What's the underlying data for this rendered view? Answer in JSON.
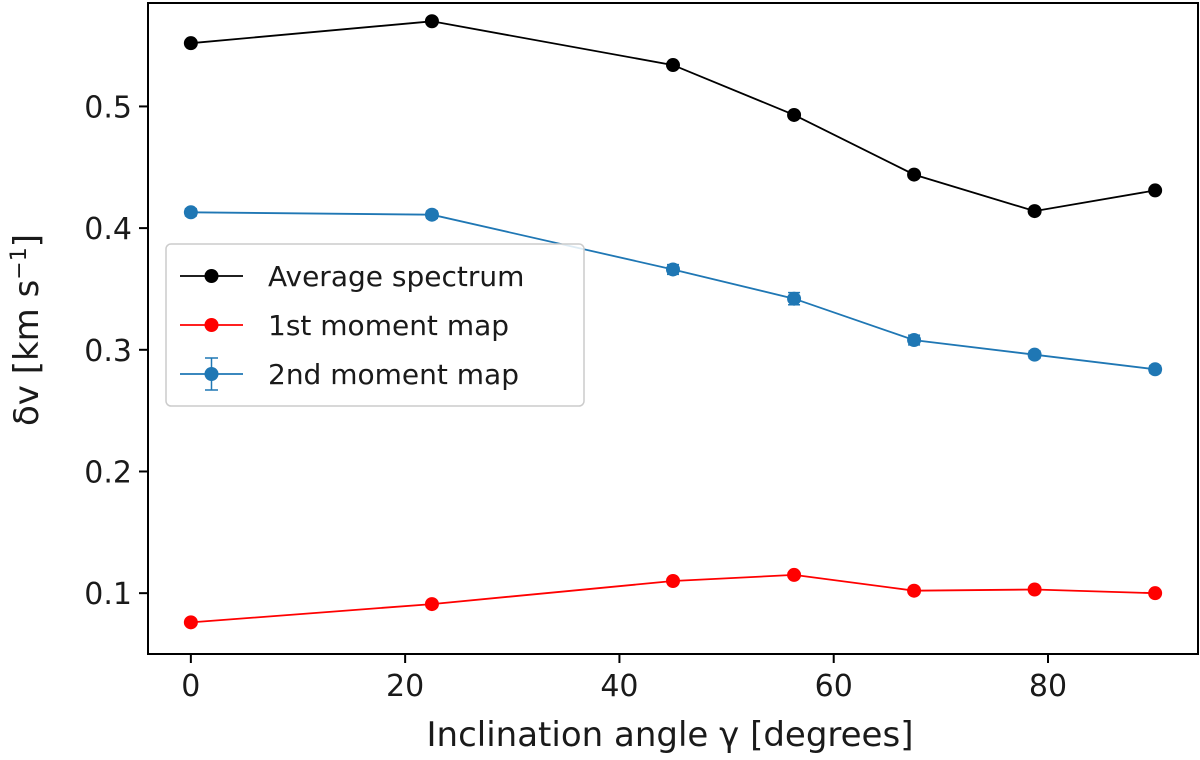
{
  "chart_data": {
    "type": "line",
    "title": "",
    "xlabel": "Inclination angle γ [degrees]",
    "ylabel_main": "δv [km s",
    "ylabel_sup": "−1",
    "ylabel_close": "]",
    "xlim": [
      -4,
      94
    ],
    "ylim": [
      0.05,
      0.585
    ],
    "xticks": [
      0,
      20,
      40,
      60,
      80
    ],
    "yticks": [
      0.1,
      0.2,
      0.3,
      0.4,
      0.5
    ],
    "xtick_labels": [
      "0",
      "20",
      "40",
      "60",
      "80"
    ],
    "ytick_labels": [
      "0.1",
      "0.2",
      "0.3",
      "0.4",
      "0.5"
    ],
    "x": [
      0,
      22.5,
      45,
      56.3,
      67.5,
      78.75,
      90
    ],
    "grid": false,
    "legend_position": "center-left",
    "series": [
      {
        "name": "Average spectrum",
        "color": "#000000",
        "marker": "circle",
        "values": [
          0.552,
          0.57,
          0.534,
          0.493,
          0.444,
          0.414,
          0.431
        ]
      },
      {
        "name": "1st moment map",
        "color": "#ff0000",
        "marker": "circle",
        "values": [
          0.076,
          0.091,
          0.11,
          0.115,
          0.102,
          0.103,
          0.1
        ]
      },
      {
        "name": "2nd moment map",
        "color": "#1f77b4",
        "marker": "circle-errorbar",
        "values": [
          0.413,
          0.411,
          0.366,
          0.342,
          0.308,
          0.296,
          0.284
        ],
        "errors": [
          0.003,
          0.003,
          0.004,
          0.005,
          0.004,
          0.003,
          0.003
        ]
      }
    ]
  }
}
